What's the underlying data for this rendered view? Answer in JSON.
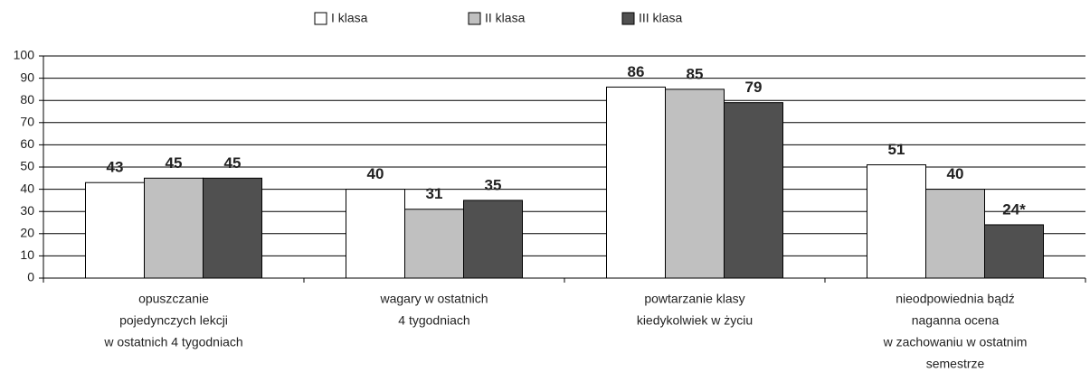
{
  "chart_data": {
    "type": "bar",
    "categories": [
      [
        "opuszczanie",
        "pojedynczych lekcji",
        "w ostatnich 4 tygodniach"
      ],
      [
        "wagary w ostatnich",
        "4 tygodniach"
      ],
      [
        "powtarzanie klasy",
        "kiedykolwiek w życiu"
      ],
      [
        "nieodpowiednia bądź",
        "naganna ocena",
        "w zachowaniu w ostatnim",
        "semestrze"
      ]
    ],
    "series": [
      {
        "name": "I klasa",
        "color": "#ffffff",
        "values": [
          43,
          40,
          86,
          51
        ]
      },
      {
        "name": "II klasa",
        "color": "#c0c0c0",
        "values": [
          45,
          31,
          85,
          40
        ]
      },
      {
        "name": "III klasa",
        "color": "#505050",
        "values": [
          45,
          35,
          79,
          24
        ],
        "value_labels": [
          "45",
          "35",
          "79",
          "24*"
        ]
      }
    ],
    "ylim": [
      0,
      100
    ],
    "yticks": [
      0,
      10,
      20,
      30,
      40,
      50,
      60,
      70,
      80,
      90,
      100
    ],
    "grid": true,
    "legend": "top"
  }
}
